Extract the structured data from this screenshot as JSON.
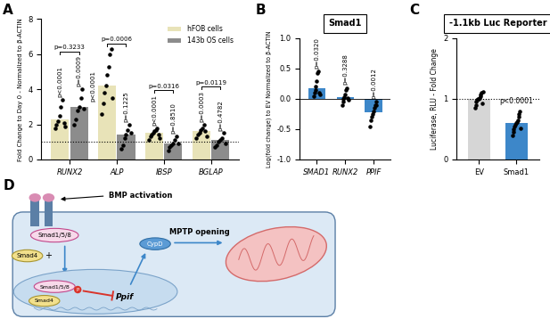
{
  "chart_data": [
    {
      "type": "bar",
      "panel_label": "A",
      "y_label": "Fold Change to Day 0 - Normalized to β-ACTIN",
      "categories": [
        "RUNX2",
        "ALP",
        "IBSP",
        "BGLAP"
      ],
      "series": [
        {
          "name": "hFOB cells",
          "color": "#e8e3b8",
          "values": [
            2.3,
            4.2,
            1.5,
            1.6
          ],
          "points": [
            [
              1.8,
              2.0,
              2.2,
              2.5,
              3.0,
              3.4,
              2.1,
              1.9
            ],
            [
              2.6,
              3.2,
              3.8,
              4.2,
              4.8,
              5.3,
              6.0,
              6.3,
              3.5
            ],
            [
              1.1,
              1.3,
              1.4,
              1.5,
              1.6,
              1.7,
              1.8,
              1.4,
              1.2
            ],
            [
              1.2,
              1.4,
              1.5,
              1.7,
              1.8,
              2.0,
              1.6,
              1.3
            ]
          ],
          "p_values": [
            "p<0.0001",
            "p<0.0001",
            "p<0.0001",
            "p=0.0003"
          ]
        },
        {
          "name": "143b OS cells",
          "color": "#8c8c8c",
          "values": [
            3.0,
            1.4,
            0.9,
            1.1
          ],
          "points": [
            [
              2.0,
              2.3,
              2.8,
              3.0,
              3.5,
              4.0,
              2.9
            ],
            [
              0.6,
              0.8,
              1.2,
              1.4,
              1.7,
              2.0,
              1.5
            ],
            [
              0.5,
              0.7,
              0.8,
              0.9,
              1.1,
              1.3,
              0.9
            ],
            [
              0.7,
              0.8,
              1.0,
              1.1,
              1.2,
              1.5,
              0.9
            ]
          ],
          "p_values": [
            "p=0.0009",
            "p=0.1225",
            "p=0.8510",
            "p=0.4782"
          ]
        }
      ],
      "comparisons": [
        "p=0.3233",
        "p=0.0006",
        "p=0.0316",
        "p=0.0119"
      ],
      "reference_line": 1,
      "ylim": [
        0,
        8
      ],
      "yticks": [
        0,
        2,
        4,
        6,
        8
      ],
      "legend": "upper right"
    },
    {
      "type": "bar",
      "panel_label": "B",
      "title": "Smad1",
      "y_label": "Log(fold change) to EV Normalized to β-ACTIN",
      "categories": [
        "SMAD1",
        "RUNX2",
        "PPIF"
      ],
      "values": [
        0.18,
        0.03,
        -0.22
      ],
      "color": "#3d87c9",
      "points": [
        [
          0.05,
          0.1,
          0.15,
          0.2,
          0.3,
          0.42,
          0.45,
          0.1,
          0.08
        ],
        [
          -0.1,
          -0.05,
          0.0,
          0.03,
          0.08,
          0.15,
          0.18,
          0.02,
          -0.02
        ],
        [
          -0.45,
          -0.35,
          -0.3,
          -0.25,
          -0.2,
          -0.15,
          -0.1,
          -0.05,
          -0.1
        ]
      ],
      "p_values": [
        "p=0.0320",
        "p=0.3288",
        "p=0.0012"
      ],
      "ylim": [
        -1,
        1
      ],
      "yticks": [
        {
          "value": -1,
          "label": "-1.0"
        },
        {
          "value": -0.5,
          "label": "-0.5"
        },
        {
          "value": 0,
          "label": "0.0"
        },
        {
          "value": 0.5,
          "label": "0.5"
        },
        {
          "value": 1,
          "label": "1.0"
        }
      ]
    },
    {
      "type": "bar",
      "panel_label": "C",
      "title": "-1.1kb Luc Reporter",
      "y_label": "Luciferase, RLU - Fold Change",
      "categories": [
        "EV",
        "Smad1"
      ],
      "values": [
        1.0,
        0.6
      ],
      "colors": [
        "#d6d6d6",
        "#3d87c9"
      ],
      "points": [
        [
          0.85,
          0.9,
          0.95,
          0.98,
          1.0,
          1.0,
          1.02,
          1.05,
          1.08,
          1.1,
          0.93,
          1.12
        ],
        [
          0.4,
          0.45,
          0.5,
          0.55,
          0.58,
          0.6,
          0.62,
          0.65,
          0.7,
          0.75,
          0.8,
          0.52
        ]
      ],
      "p_values": [
        null,
        "p<0.0001"
      ],
      "reference_line": 1,
      "ylim": [
        0,
        2
      ],
      "yticks": [
        0,
        1,
        2
      ]
    }
  ],
  "diagram": {
    "panel_label": "D",
    "stimulus": "BMP activation",
    "receptor_smad": "Smad1/5/8",
    "cyto_smad4": "Smad4",
    "plus": "+",
    "nuclear_smad": "Smad1/5/8",
    "phospho": "P",
    "nuclear_smad4": "Smad4",
    "gene": "Ppif",
    "protein": "CypD",
    "outcome": "MPTP opening"
  }
}
